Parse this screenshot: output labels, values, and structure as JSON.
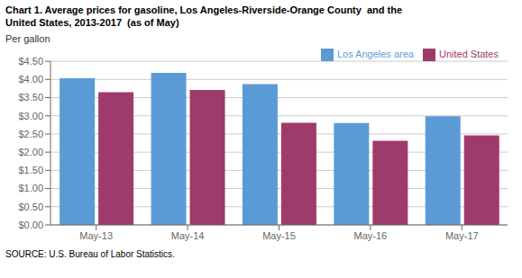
{
  "chart_data": {
    "type": "bar",
    "title": "Chart 1. Average prices for gasoline, Los Angeles-Riverside-Orange County  and the\nUnited States, 2013-2017  (as of May)",
    "y_label": "Per gallon",
    "annotations": [
      "SOURCE: U.S. Bureau of Labor Statistics."
    ],
    "categories": [
      "May-13",
      "May-14",
      "May-15",
      "May-16",
      "May-17"
    ],
    "series": [
      {
        "name": "Los Angeles area",
        "color": "#5B9BD5",
        "values": [
          4.03,
          4.18,
          3.87,
          2.8,
          2.99
        ]
      },
      {
        "name": "United States",
        "color": "#9E3A6C",
        "values": [
          3.65,
          3.71,
          2.81,
          2.31,
          2.46
        ]
      }
    ],
    "ylim": [
      0,
      4.5
    ],
    "yticks": [
      {
        "value": 0.0,
        "label": "$0.00"
      },
      {
        "value": 0.5,
        "label": "$0.50"
      },
      {
        "value": 1.0,
        "label": "$1.00"
      },
      {
        "value": 1.5,
        "label": "$1.50"
      },
      {
        "value": 2.0,
        "label": "$2.00"
      },
      {
        "value": 2.5,
        "label": "$2.50"
      },
      {
        "value": 3.0,
        "label": "$3.00"
      },
      {
        "value": 3.5,
        "label": "$3.50"
      },
      {
        "value": 4.0,
        "label": "$4.00"
      },
      {
        "value": 4.5,
        "label": "$4.50"
      }
    ],
    "grid": true,
    "legend": "upper right"
  }
}
